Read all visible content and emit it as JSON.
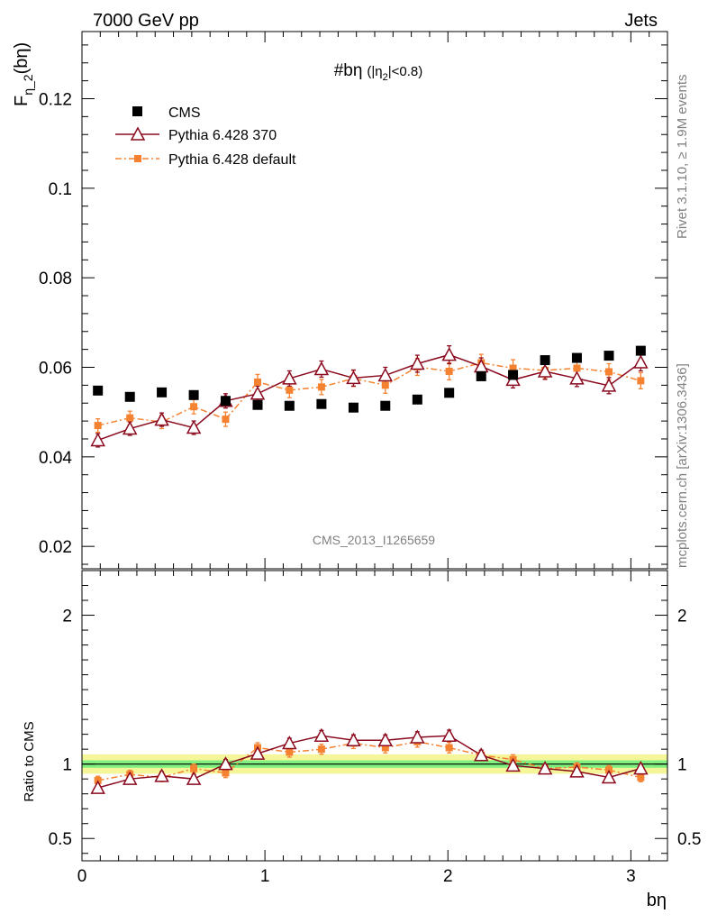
{
  "header": {
    "left": "7000 GeV pp",
    "right": "Jets"
  },
  "side_labels": {
    "rivet": "Rivet 3.1.10, ≥ 1.9M events",
    "mcplots": "mcplots.cern.ch [arXiv:1306.3436]"
  },
  "watermark": "CMS_2013_I1265659",
  "plot_title": {
    "main": "#bη",
    "open": "(|η",
    "sub": "2",
    "close": "|<0.8)"
  },
  "axes": {
    "ylabel_main": "F",
    "ylabel_sub": "η_2",
    "ylabel_arg": "(bη)",
    "ratio_ylabel": "Ratio to CMS",
    "xlabel": "bη"
  },
  "legend": {
    "cms": "CMS",
    "p370": "Pythia 6.428 370",
    "pdef": "Pythia 6.428 default"
  },
  "colors": {
    "cms": "#000000",
    "p370": "#8b0a1f",
    "pdef": "#f58231",
    "band_inner": "#80f080",
    "band_outer": "#f5f599"
  },
  "chart_data": {
    "type": "scatter",
    "main": {
      "xlim": [
        0,
        3.2
      ],
      "ylim": [
        0.015,
        0.135
      ],
      "yticks": [
        0.02,
        0.04,
        0.06,
        0.08,
        0.1,
        0.12
      ],
      "ytick_labels": [
        "0.02",
        "0.04",
        "0.06",
        "0.08",
        "0.1",
        "0.12"
      ]
    },
    "ratio": {
      "ylim": [
        0.35,
        2.3
      ],
      "yticks": [
        0.5,
        1,
        2
      ],
      "ytick_labels": [
        "0.5",
        "1",
        "2"
      ],
      "band_inner": 0.025,
      "band_outer": 0.065
    },
    "xticks": [
      0,
      1,
      2,
      3
    ],
    "xtick_labels": [
      "0",
      "1",
      "2",
      "3"
    ],
    "x": [
      0.087,
      0.262,
      0.436,
      0.611,
      0.785,
      0.96,
      1.134,
      1.309,
      1.484,
      1.658,
      1.833,
      2.007,
      2.182,
      2.356,
      2.531,
      2.705,
      2.88,
      3.054
    ],
    "series": [
      {
        "name": "CMS",
        "values": [
          0.0548,
          0.0534,
          0.0544,
          0.0538,
          0.0525,
          0.0516,
          0.0514,
          0.0518,
          0.051,
          0.0514,
          0.0528,
          0.0543,
          0.058,
          0.0583,
          0.0616,
          0.0621,
          0.0626,
          0.0637
        ]
      },
      {
        "name": "Pythia 6.428 370",
        "values": [
          0.0437,
          0.0463,
          0.0483,
          0.0465,
          0.0525,
          0.0541,
          0.0575,
          0.0596,
          0.0576,
          0.0582,
          0.0608,
          0.0628,
          0.0602,
          0.0572,
          0.0591,
          0.0575,
          0.0559,
          0.0611
        ],
        "errors": [
          0.0015,
          0.0015,
          0.0015,
          0.0015,
          0.0016,
          0.0017,
          0.0017,
          0.0018,
          0.0018,
          0.0018,
          0.0019,
          0.002,
          0.0019,
          0.0018,
          0.0018,
          0.0018,
          0.0018,
          0.0019
        ],
        "ratio": [
          0.84,
          0.9,
          0.92,
          0.9,
          1.0,
          1.07,
          1.14,
          1.19,
          1.16,
          1.16,
          1.18,
          1.19,
          1.06,
          0.99,
          0.97,
          0.95,
          0.91,
          0.97
        ]
      },
      {
        "name": "Pythia 6.428 default",
        "values": [
          0.047,
          0.0487,
          0.0478,
          0.0512,
          0.0484,
          0.0567,
          0.0549,
          0.0556,
          0.0575,
          0.056,
          0.0601,
          0.0591,
          0.061,
          0.0598,
          0.0593,
          0.0598,
          0.059,
          0.057
        ],
        "errors": [
          0.0015,
          0.0015,
          0.0015,
          0.0016,
          0.0016,
          0.0017,
          0.0017,
          0.0017,
          0.0018,
          0.0018,
          0.0019,
          0.0019,
          0.0019,
          0.0019,
          0.0018,
          0.0018,
          0.0018,
          0.0018
        ],
        "ratio": [
          0.89,
          0.93,
          0.91,
          0.97,
          0.94,
          1.11,
          1.08,
          1.1,
          1.14,
          1.11,
          1.15,
          1.11,
          1.06,
          1.03,
          0.97,
          0.98,
          0.96,
          0.91
        ]
      }
    ]
  }
}
